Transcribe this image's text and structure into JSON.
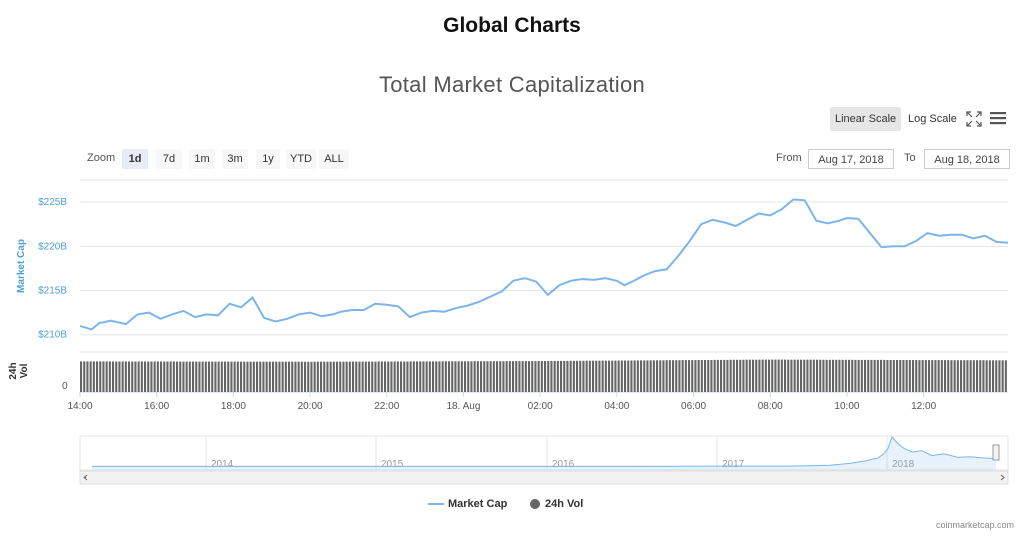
{
  "page_title": "Global Charts",
  "chart_title": "Total Market Capitalization",
  "scale": {
    "linear": "Linear Scale",
    "log": "Log Scale"
  },
  "zoom": {
    "label": "Zoom",
    "buttons": [
      "1d",
      "7d",
      "1m",
      "3m",
      "1y",
      "YTD",
      "ALL"
    ],
    "active": "1d"
  },
  "range": {
    "from_label": "From",
    "from_value": "Aug 17, 2018",
    "to_label": "To",
    "to_value": "Aug 18, 2018"
  },
  "legend": {
    "market_cap": "Market Cap",
    "volume": "24h Vol"
  },
  "credits": "coinmarketcap.com",
  "colors": {
    "market_cap": "#7cb5ec",
    "volume": "#666666",
    "accent": "#4d9fd6"
  },
  "chart_data": {
    "type": "line",
    "title": "Total Market Capitalization",
    "ylabel": "Market Cap",
    "y_ticks": [
      "$210B",
      "$215B",
      "$220B",
      "$225B"
    ],
    "ylim": [
      208.5,
      227.5
    ],
    "x_ticks": [
      "14:00",
      "16:00",
      "18:00",
      "20:00",
      "22:00",
      "18. Aug",
      "02:00",
      "04:00",
      "06:00",
      "08:00",
      "10:00",
      "12:00"
    ],
    "x_hours_range": [
      0,
      24.2
    ],
    "series": [
      {
        "name": "Market Cap",
        "x_hours": [
          0,
          0.3,
          0.5,
          0.8,
          1.2,
          1.5,
          1.8,
          2.1,
          2.4,
          2.7,
          3.0,
          3.3,
          3.6,
          3.9,
          4.2,
          4.5,
          4.8,
          5.1,
          5.4,
          5.7,
          6.0,
          6.3,
          6.6,
          6.8,
          7.1,
          7.4,
          7.7,
          8.0,
          8.3,
          8.6,
          8.9,
          9.2,
          9.5,
          9.8,
          10.1,
          10.4,
          10.7,
          11.0,
          11.3,
          11.6,
          11.9,
          12.2,
          12.5,
          12.8,
          13.1,
          13.4,
          13.7,
          14.0,
          14.2,
          14.4,
          14.7,
          15.0,
          15.3,
          15.6,
          15.9,
          16.2,
          16.5,
          16.8,
          17.1,
          17.4,
          17.7,
          18.0,
          18.3,
          18.6,
          18.9,
          19.2,
          19.5,
          19.8,
          20.0,
          20.3,
          20.6,
          20.9,
          21.2,
          21.5,
          21.8,
          22.1,
          22.4,
          22.7,
          23.0,
          23.3,
          23.6,
          23.9,
          24.2
        ],
        "values": [
          211.0,
          210.6,
          211.3,
          211.6,
          211.2,
          212.3,
          212.5,
          211.8,
          212.3,
          212.7,
          212.0,
          212.3,
          212.2,
          213.5,
          213.1,
          214.2,
          211.9,
          211.5,
          211.8,
          212.3,
          212.5,
          212.1,
          212.3,
          212.6,
          212.8,
          212.8,
          213.5,
          213.4,
          213.2,
          212.0,
          212.5,
          212.7,
          212.6,
          213.0,
          213.3,
          213.7,
          214.3,
          214.9,
          216.1,
          216.4,
          216.0,
          214.5,
          215.6,
          216.1,
          216.3,
          216.2,
          216.4,
          216.1,
          215.6,
          216.0,
          216.7,
          217.2,
          217.4,
          218.9,
          220.6,
          222.5,
          223.0,
          222.7,
          222.3,
          223.0,
          223.7,
          223.5,
          224.2,
          225.3,
          225.2,
          222.9,
          222.6,
          222.9,
          223.2,
          223.1,
          221.5,
          219.9,
          220.0,
          220.0,
          220.6,
          221.5,
          221.2,
          221.3,
          221.3,
          220.9,
          221.2,
          220.5,
          220.4
        ]
      },
      {
        "name": "24h Vol",
        "x_hours": [
          0,
          6,
          12,
          18,
          24.2
        ],
        "values_relative": [
          0.85,
          0.84,
          0.86,
          0.9,
          0.88
        ]
      }
    ],
    "navigator": {
      "x_labels": [
        "2014",
        "2015",
        "2016",
        "2017",
        "2018"
      ],
      "relative_values": [
        0.02,
        0.02,
        0.02,
        0.02,
        0.02,
        0.03,
        0.03,
        0.03,
        0.04,
        0.06,
        0.12,
        0.2,
        0.26,
        0.3,
        0.45,
        0.62,
        1.0,
        0.78,
        0.62,
        0.5,
        0.54,
        0.38,
        0.44,
        0.32,
        0.34,
        0.3,
        0.28
      ]
    }
  }
}
